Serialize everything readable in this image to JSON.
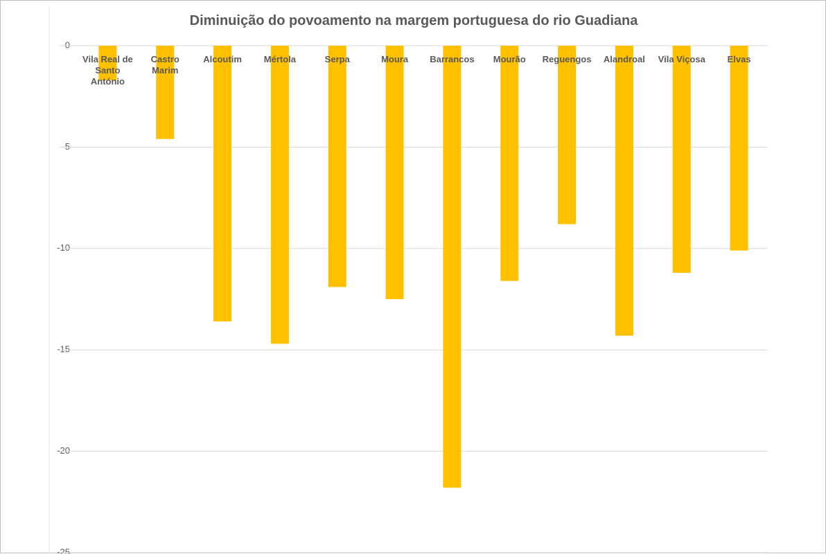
{
  "chart_data": {
    "type": "bar",
    "title": "Diminuição do povoamento na margem portuguesa do rio Guadiana",
    "categories": [
      "Vila Real de Santo António",
      "Castro Marim",
      "Alcoutim",
      "Mértola",
      "Serpa",
      "Moura",
      "Barrancos",
      "Mourão",
      "Reguengos",
      "Alandroal",
      "Vila Viçosa",
      "Elvas"
    ],
    "values": [
      -1.7,
      -4.6,
      -13.6,
      -14.7,
      -11.9,
      -12.5,
      -21.8,
      -11.6,
      -8.8,
      -14.3,
      -11.2,
      -10.1
    ],
    "color": "#ffc000",
    "ylim": [
      -25,
      0
    ],
    "yticks": [
      0,
      -5,
      -10,
      -15,
      -20,
      -25
    ],
    "grid": true
  }
}
